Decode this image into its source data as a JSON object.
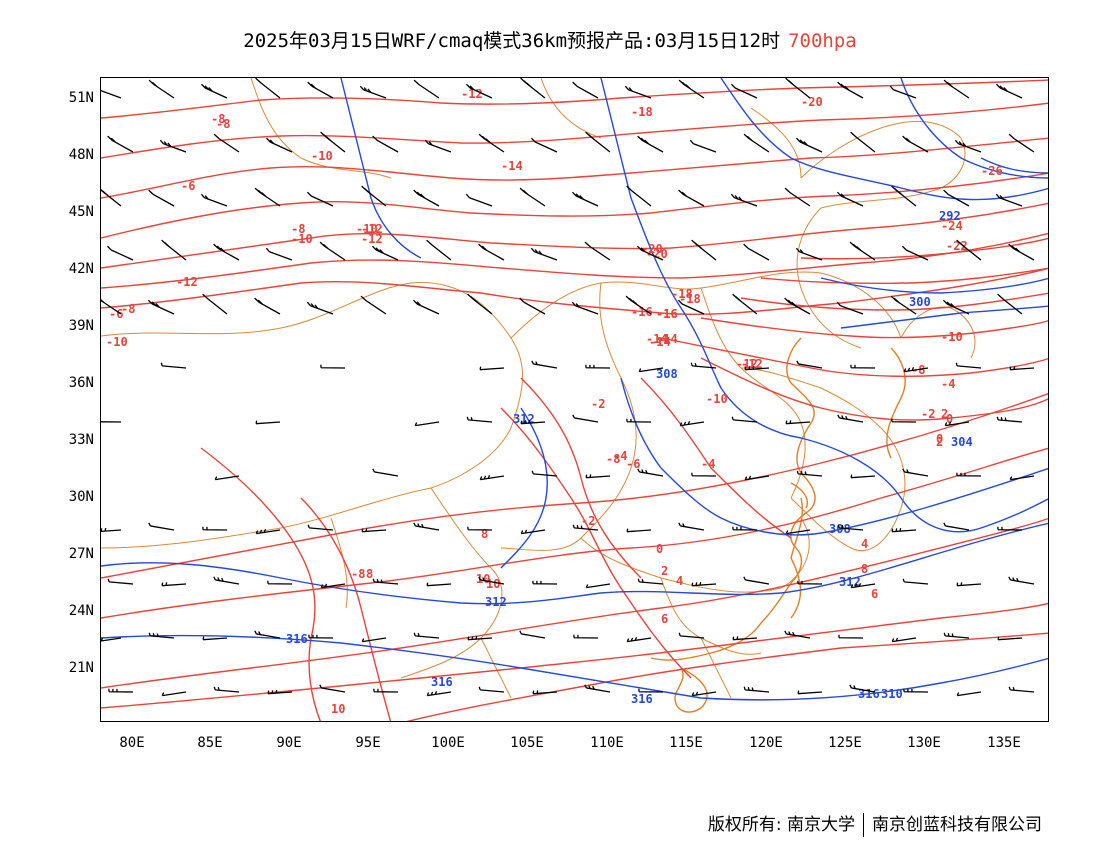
{
  "title": {
    "main": "2025年03月15日WRF/cmaq模式36km预报产品:03月15日12时",
    "level": "700hpa"
  },
  "axes": {
    "lat_ticks": [
      "51N",
      "48N",
      "45N",
      "42N",
      "39N",
      "36N",
      "33N",
      "30N",
      "27N",
      "24N",
      "21N"
    ],
    "lon_ticks": [
      "80E",
      "85E",
      "90E",
      "95E",
      "100E",
      "105E",
      "110E",
      "115E",
      "120E",
      "125E",
      "130E",
      "135E"
    ]
  },
  "colors": {
    "temperature": "#e8443c",
    "geopotential": "#2649d8",
    "boundary": "#d98a3a",
    "wind": "#000000"
  },
  "temperature_labels": [
    "-8",
    "-8",
    "-10",
    "-12",
    "-14",
    "-18",
    "-20",
    "-6",
    "-8",
    "-10",
    "-12",
    "-10",
    "-12",
    "-8",
    "-10",
    "-8",
    "-12",
    "-16",
    "-18",
    "-14",
    "-12",
    "-20",
    "-22",
    "-24",
    "-26",
    "-10",
    "-8",
    "-4",
    "-2",
    "0",
    "2",
    "-16",
    "-14",
    "-12",
    "-10",
    "-8",
    "-6",
    "-4",
    "-2",
    "0",
    "2",
    "4",
    "6",
    "8",
    "6",
    "4",
    "2",
    "0",
    "-2",
    "-4",
    "-6",
    "8",
    "10",
    "8",
    "10",
    "10",
    "-20",
    "-18",
    "-16",
    "-14"
  ],
  "geopotential_labels": [
    "292",
    "300",
    "308",
    "312",
    "304",
    "308",
    "312",
    "312",
    "316",
    "316",
    "316",
    "316",
    "310"
  ],
  "footer": {
    "copyright": "版权所有: 南京大学",
    "company": "南京创蓝科技有限公司"
  }
}
